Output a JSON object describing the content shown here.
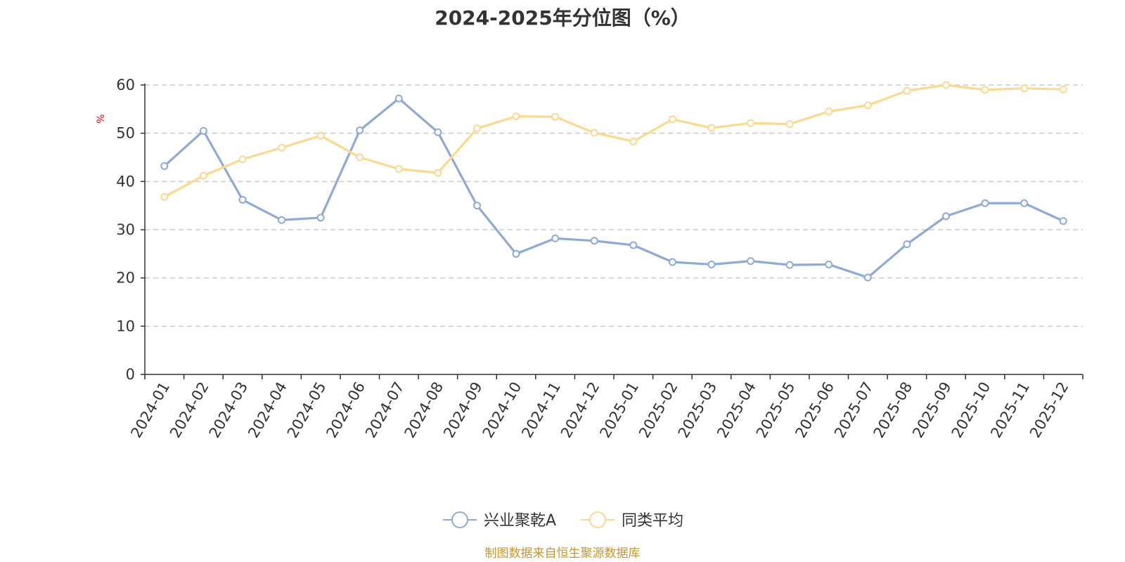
{
  "chart_data": {
    "type": "line",
    "title": "2024-2025年分位图（%）",
    "xlabel": "",
    "ylabel": "%",
    "ylim": [
      0,
      60
    ],
    "yticks": [
      0,
      10,
      20,
      30,
      40,
      50,
      60
    ],
    "grid": true,
    "legend_position": "bottom",
    "categories": [
      "2024-01",
      "2024-02",
      "2024-03",
      "2024-04",
      "2024-05",
      "2024-06",
      "2024-07",
      "2024-08",
      "2024-09",
      "2024-10",
      "2024-11",
      "2024-12",
      "2025-01",
      "2025-02",
      "2025-03",
      "2025-04",
      "2025-05",
      "2025-06",
      "2025-07",
      "2025-08",
      "2025-09",
      "2025-10",
      "2025-11",
      "2025-12"
    ],
    "series": [
      {
        "name": "兴业聚乾A",
        "color": "#8eabd8",
        "values": [
          43.2,
          50.5,
          36.2,
          32.0,
          32.5,
          50.6,
          57.2,
          50.2,
          35.0,
          25.0,
          28.2,
          27.7,
          26.8,
          23.3,
          22.8,
          23.5,
          22.7,
          22.8,
          20.1,
          27.0,
          32.8,
          35.5,
          35.5,
          31.8
        ]
      },
      {
        "name": "同类平均",
        "color": "#fdd990",
        "values": [
          36.8,
          41.2,
          44.6,
          47.0,
          49.5,
          45.0,
          42.6,
          41.8,
          51.0,
          53.5,
          53.4,
          50.1,
          48.3,
          52.9,
          51.1,
          52.1,
          51.9,
          54.5,
          55.8,
          58.8,
          60.0,
          59.0,
          59.3,
          59.1
        ]
      }
    ]
  },
  "colors": {
    "axis": "#333333",
    "grid": "#cccccc",
    "ylabel": "#ff0000",
    "source": "#c8962e"
  },
  "source_text": "制图数据来自恒生聚源数据库"
}
